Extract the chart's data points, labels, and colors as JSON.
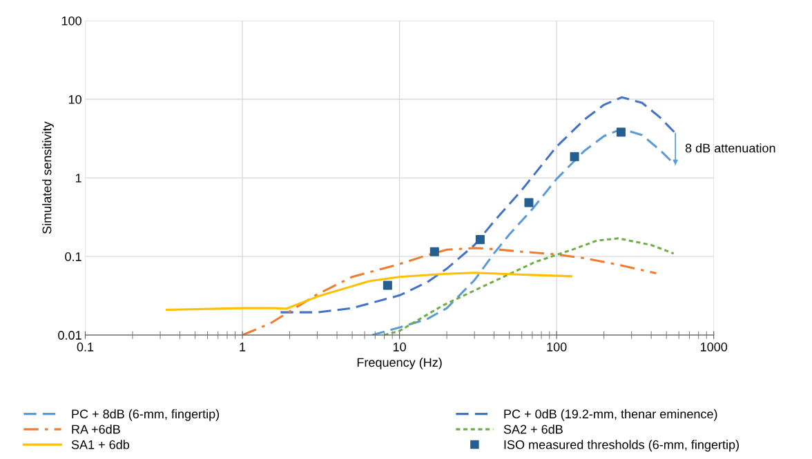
{
  "chart_data": {
    "type": "line",
    "xlabel": "Frequency (Hz)",
    "ylabel": "Simulated sensitivity",
    "log": "xy",
    "xlim": [
      0.1,
      1000
    ],
    "ylim": [
      0.01,
      100
    ],
    "xticks": [
      {
        "value": 0.1,
        "label": "0.1"
      },
      {
        "value": 1,
        "label": "1"
      },
      {
        "value": 10,
        "label": "10"
      },
      {
        "value": 100,
        "label": "100"
      },
      {
        "value": 1000,
        "label": "1000"
      }
    ],
    "yticks": [
      {
        "value": 0.01,
        "label": "0.01"
      },
      {
        "value": 0.1,
        "label": "0.1"
      },
      {
        "value": 1,
        "label": "1"
      },
      {
        "value": 10,
        "label": "10"
      },
      {
        "value": 100,
        "label": "100"
      }
    ],
    "grid": true,
    "legend": "bottom",
    "marker": "none",
    "series": [
      {
        "name": "PC + 8dB (6-mm, fingertip)",
        "color": "#5b9bd5",
        "line_style": "dashed",
        "x": [
          6.7,
          10,
          15,
          20,
          30,
          40,
          50,
          70,
          100,
          150,
          200,
          260,
          350,
          450,
          570
        ],
        "values": [
          0.01,
          0.0125,
          0.016,
          0.022,
          0.05,
          0.11,
          0.19,
          0.4,
          0.97,
          2.2,
          3.4,
          4.2,
          3.5,
          2.3,
          1.45
        ]
      },
      {
        "name": "PC + 0dB (19.2-mm, thenar eminence)",
        "color": "#4472c4",
        "line_style": "dashed",
        "x": [
          1.75,
          3,
          5,
          10,
          15,
          20,
          30,
          40,
          60,
          100,
          150,
          200,
          260,
          350,
          450,
          570
        ],
        "values": [
          0.0195,
          0.0195,
          0.022,
          0.032,
          0.047,
          0.07,
          0.14,
          0.28,
          0.7,
          2.5,
          5.5,
          8.5,
          10.6,
          9,
          6,
          3.7
        ]
      },
      {
        "name": "RA +6dB",
        "color": "#ed7d31",
        "line_style": "dashdot",
        "x": [
          1,
          1.5,
          2,
          3,
          5,
          10,
          15,
          20,
          30,
          40,
          60,
          100,
          150,
          250,
          430
        ],
        "values": [
          0.01,
          0.014,
          0.02,
          0.033,
          0.055,
          0.08,
          0.104,
          0.122,
          0.128,
          0.124,
          0.115,
          0.106,
          0.095,
          0.078,
          0.061
        ]
      },
      {
        "name": "SA2 + 6dB",
        "color": "#70ad47",
        "line_style": "dotted",
        "x": [
          8,
          10,
          19,
          37,
          73,
          127,
          180,
          247,
          400,
          556
        ],
        "values": [
          0.01,
          0.0113,
          0.024,
          0.045,
          0.085,
          0.123,
          0.159,
          0.17,
          0.14,
          0.109
        ]
      },
      {
        "name": "SA1 + 6db",
        "color": "#ffc000",
        "line_style": "solid",
        "x": [
          0.33,
          1,
          1.6,
          1.9,
          3.1,
          6.4,
          10,
          19,
          30,
          73,
          124
        ],
        "values": [
          0.021,
          0.022,
          0.022,
          0.0216,
          0.0316,
          0.0485,
          0.055,
          0.06,
          0.062,
          0.058,
          0.056
        ]
      },
      {
        "name": "ISO measured thresholds (6-mm, fingertip)",
        "type": "scatter",
        "marker": "square",
        "color": "#255e91",
        "x": [
          8.4,
          16.7,
          32.6,
          66.6,
          130,
          257
        ],
        "values": [
          0.043,
          0.115,
          0.164,
          0.485,
          1.86,
          3.82
        ]
      }
    ],
    "annotations": [
      "8 dB attenuation"
    ]
  }
}
